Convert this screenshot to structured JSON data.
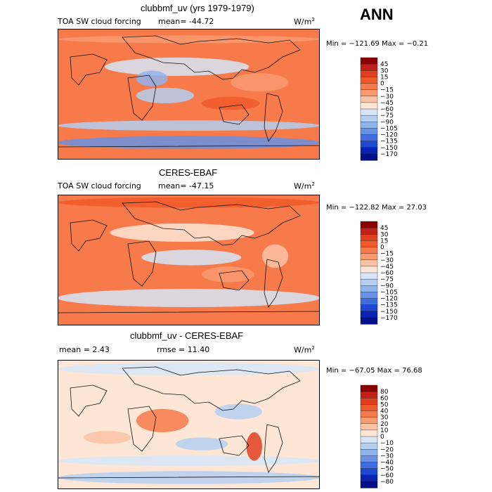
{
  "season": "ANN",
  "panels": [
    {
      "title": "clubbmf_uv (yrs 1979-1979)",
      "variable": "TOA SW cloud forcing",
      "mean_text": "mean= -44.72",
      "units": "W/m",
      "units_sup": "2",
      "minmax_text": "Min = −121.69  Max =   −0.21",
      "colorbar": {
        "labels": [
          "45",
          "30",
          "15",
          "0",
          "−15",
          "−30",
          "−45",
          "−60",
          "−75",
          "−90",
          "−105",
          "−120",
          "−135",
          "−150",
          "−170"
        ],
        "colors": [
          "#8b0000",
          "#c0221a",
          "#e0401f",
          "#f05a2a",
          "#f67a4a",
          "#f99a70",
          "#fcc2a4",
          "#fde6d6",
          "#d6e6f8",
          "#b4cff2",
          "#8fb4ec",
          "#6892e4",
          "#3f6ee0",
          "#1d48d4",
          "#0a22b4",
          "#00108a"
        ]
      },
      "field": "model"
    },
    {
      "title": "CERES-EBAF",
      "variable": "TOA SW cloud forcing",
      "mean_text": "mean= -47.15",
      "units": "W/m",
      "units_sup": "2",
      "minmax_text": "Min = −122.82  Max =   27.03",
      "colorbar": {
        "labels": [
          "45",
          "30",
          "15",
          "0",
          "−15",
          "−30",
          "−45",
          "−60",
          "−75",
          "−90",
          "−105",
          "−120",
          "−135",
          "−150",
          "−170"
        ],
        "colors": [
          "#8b0000",
          "#c0221a",
          "#e0401f",
          "#f05a2a",
          "#f67a4a",
          "#f99a70",
          "#fcc2a4",
          "#fde6d6",
          "#d6e6f8",
          "#b4cff2",
          "#8fb4ec",
          "#6892e4",
          "#3f6ee0",
          "#1d48d4",
          "#0a22b4",
          "#00108a"
        ]
      },
      "field": "obs"
    },
    {
      "title": "clubbmf_uv - CERES-EBAF",
      "mean_text": "mean =    2.43",
      "rmse_text": "rmse =   11.40",
      "units": "W/m",
      "units_sup": "2",
      "minmax_text": "Min = −67.05  Max =   76.68",
      "colorbar": {
        "labels": [
          "80",
          "60",
          "50",
          "40",
          "30",
          "20",
          "10",
          "0",
          "−10",
          "−20",
          "−30",
          "−40",
          "−50",
          "−60",
          "−80"
        ],
        "colors": [
          "#8b0000",
          "#c0221a",
          "#e0401f",
          "#f05a2a",
          "#f67a4a",
          "#f99a70",
          "#fcc2a4",
          "#fde6d6",
          "#d6e6f8",
          "#b4cff2",
          "#8fb4ec",
          "#6892e4",
          "#3f6ee0",
          "#1d48d4",
          "#0a22b4",
          "#00108a"
        ]
      },
      "field": "diff"
    }
  ],
  "chart_data": [
    {
      "type": "heatmap",
      "title": "clubbmf_uv (yrs 1979-1979)",
      "variable": "TOA SW cloud forcing",
      "units": "W/m2",
      "mean": -44.72,
      "min": -121.69,
      "max": -0.21,
      "contour_levels": [
        -170,
        -150,
        -135,
        -120,
        -105,
        -90,
        -75,
        -60,
        -45,
        -30,
        -15,
        0,
        15,
        30,
        45
      ]
    },
    {
      "type": "heatmap",
      "title": "CERES-EBAF",
      "variable": "TOA SW cloud forcing",
      "units": "W/m2",
      "mean": -47.15,
      "min": -122.82,
      "max": 27.03,
      "contour_levels": [
        -170,
        -150,
        -135,
        -120,
        -105,
        -90,
        -75,
        -60,
        -45,
        -30,
        -15,
        0,
        15,
        30,
        45
      ]
    },
    {
      "type": "heatmap",
      "title": "clubbmf_uv - CERES-EBAF",
      "units": "W/m2",
      "mean": 2.43,
      "rmse": 11.4,
      "min": -67.05,
      "max": 76.68,
      "contour_levels": [
        -80,
        -60,
        -50,
        -40,
        -30,
        -20,
        -10,
        0,
        10,
        20,
        30,
        40,
        50,
        60,
        80
      ]
    }
  ]
}
